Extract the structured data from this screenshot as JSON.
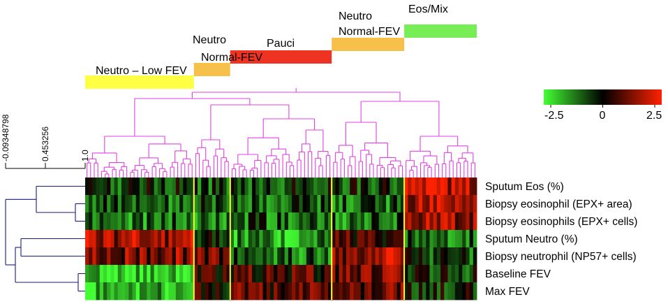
{
  "chart_data": {
    "type": "heatmap",
    "title": "",
    "rows": [
      "Sputum Eos (%)",
      "Biopsy  eosinophil (EPX+ area)",
      "Biopsy eosinophils (EPX+ cells)",
      "Sputum Neutro (%)",
      "Biopsy neutrophil (NP57+ cells)",
      "Baseline FEV",
      "Max FEV"
    ],
    "color_scale": {
      "min": -2.5,
      "mid": 0,
      "max": 2.5,
      "tick_labels": [
        "-2.5",
        "0",
        "2.5"
      ],
      "low_color": "#44ff33",
      "mid_color": "#000000",
      "high_color": "#ff2200"
    },
    "clusters": [
      {
        "label_lines": [
          "Neutro – Low FEV"
        ],
        "color": "#ffff44",
        "columns": 30
      },
      {
        "label_lines": [
          "Neutro",
          "Normal-FEV"
        ],
        "color": "#f7c04a",
        "columns": 10
      },
      {
        "label_lines": [
          "Pauci"
        ],
        "color": "#ee3322",
        "columns": 28
      },
      {
        "label_lines": [
          "Neutro",
          "Normal-FEV"
        ],
        "color": "#f7c04a",
        "columns": 20
      },
      {
        "label_lines": [
          "Eos/Mix"
        ],
        "color": "#77ee55",
        "columns": 20
      }
    ],
    "cluster_profiles": [
      [
        -0.5,
        -1.0,
        -1.0,
        1.5,
        1.2,
        -2.0,
        -1.8
      ],
      [
        -0.6,
        -0.9,
        -1.0,
        -0.2,
        0.9,
        0.2,
        0.1
      ],
      [
        -0.5,
        -0.8,
        -0.9,
        -1.4,
        -1.0,
        0.6,
        0.7
      ],
      [
        -0.4,
        -0.9,
        -1.0,
        0.4,
        1.4,
        1.0,
        0.9
      ],
      [
        1.8,
        1.6,
        1.5,
        -0.9,
        -0.6,
        -0.4,
        -0.2
      ]
    ],
    "row_dendrogram_axis": {
      "tick_labels": [
        "-0.09348798",
        "0.453256",
        "1.0"
      ]
    },
    "colors": {
      "column_dendrogram": "#e040e0",
      "row_dendrogram": "#1a1a80",
      "cluster_divider": "#ffff33"
    }
  }
}
